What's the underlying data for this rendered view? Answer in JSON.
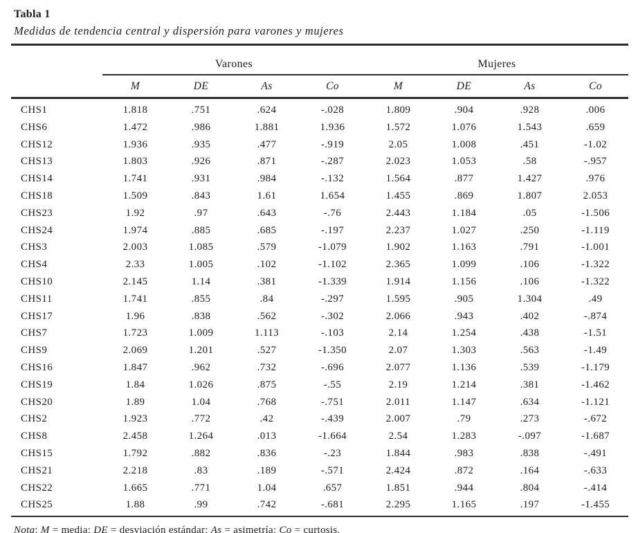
{
  "title": "Tabla 1",
  "subtitle": "Medidas de tendencia central y dispersión para varones y mujeres",
  "colors": {
    "text": "#1c1c1c",
    "rule": "#2a2a2a",
    "background": "#ffffff"
  },
  "table": {
    "groups": [
      {
        "label": "Varones"
      },
      {
        "label": "Mujeres"
      }
    ],
    "subheaders": [
      "M",
      "DE",
      "As",
      "Co",
      "M",
      "DE",
      "As",
      "Co"
    ],
    "rows": [
      {
        "label": "CHS1",
        "values": [
          "1.818",
          ".751",
          ".624",
          "-.028",
          "1.809",
          ".904",
          ".928",
          ".006"
        ]
      },
      {
        "label": "CHS6",
        "values": [
          "1.472",
          ".986",
          "1.881",
          "1.936",
          "1.572",
          "1.076",
          "1.543",
          ".659"
        ]
      },
      {
        "label": "CHS12",
        "values": [
          "1.936",
          ".935",
          ".477",
          "-.919",
          "2.05",
          "1.008",
          ".451",
          "-1.02"
        ]
      },
      {
        "label": "CHS13",
        "values": [
          "1.803",
          ".926",
          ".871",
          "-.287",
          "2.023",
          "1.053",
          ".58",
          "-.957"
        ]
      },
      {
        "label": "CHS14",
        "values": [
          "1.741",
          ".931",
          ".984",
          "-.132",
          "1.564",
          ".877",
          "1.427",
          ".976"
        ]
      },
      {
        "label": "CHS18",
        "values": [
          "1.509",
          ".843",
          "1.61",
          "1.654",
          "1.455",
          ".869",
          "1.807",
          "2.053"
        ]
      },
      {
        "label": "CHS23",
        "values": [
          "1.92",
          ".97",
          ".643",
          "-.76",
          "2.443",
          "1.184",
          ".05",
          "-1.506"
        ]
      },
      {
        "label": "CHS24",
        "values": [
          "1.974",
          ".885",
          ".685",
          "-.197",
          "2.237",
          "1.027",
          ".250",
          "-1.119"
        ]
      },
      {
        "label": "CHS3",
        "values": [
          "2.003",
          "1.085",
          ".579",
          "-1.079",
          "1.902",
          "1.163",
          ".791",
          "-1.001"
        ]
      },
      {
        "label": "CHS4",
        "values": [
          "2.33",
          "1.005",
          ".102",
          "-1.102",
          "2.365",
          "1.099",
          ".106",
          "-1.322"
        ]
      },
      {
        "label": "CHS10",
        "values": [
          "2.145",
          "1.14",
          ".381",
          "-1.339",
          "1.914",
          "1.156",
          ".106",
          "-1.322"
        ]
      },
      {
        "label": "CHS11",
        "values": [
          "1.741",
          ".855",
          ".84",
          "-.297",
          "1.595",
          ".905",
          "1.304",
          ".49"
        ]
      },
      {
        "label": "CHS17",
        "values": [
          "1.96",
          ".838",
          ".562",
          "-.302",
          "2.066",
          ".943",
          ".402",
          "-.874"
        ]
      },
      {
        "label": "CHS7",
        "values": [
          "1.723",
          "1.009",
          "1.113",
          "-.103",
          "2.14",
          "1.254",
          ".438",
          "-1.51"
        ]
      },
      {
        "label": "CHS9",
        "values": [
          "2.069",
          "1.201",
          ".527",
          "-1.350",
          "2.07",
          "1.303",
          ".563",
          "-1.49"
        ]
      },
      {
        "label": "CHS16",
        "values": [
          "1.847",
          ".962",
          ".732",
          "-.696",
          "2.077",
          "1.136",
          ".539",
          "-1.179"
        ]
      },
      {
        "label": "CHS19",
        "values": [
          "1.84",
          "1.026",
          ".875",
          "-.55",
          "2.19",
          "1.214",
          ".381",
          "-1.462"
        ]
      },
      {
        "label": "CHS20",
        "values": [
          "1.89",
          "1.04",
          ".768",
          "-.751",
          "2.011",
          "1.147",
          ".634",
          "-1.121"
        ]
      },
      {
        "label": "CHS2",
        "values": [
          "1.923",
          ".772",
          ".42",
          "-.439",
          "2.007",
          ".79",
          ".273",
          "-.672"
        ]
      },
      {
        "label": "CHS8",
        "values": [
          "2.458",
          "1.264",
          ".013",
          "-1.664",
          "2.54",
          "1.283",
          "-.097",
          "-1.687"
        ]
      },
      {
        "label": "CHS15",
        "values": [
          "1.792",
          ".882",
          ".836",
          "-.23",
          "1.844",
          ".983",
          ".838",
          "-.491"
        ]
      },
      {
        "label": "CHS21",
        "values": [
          "2.218",
          ".83",
          ".189",
          "-.571",
          "2.424",
          ".872",
          ".164",
          "-.633"
        ]
      },
      {
        "label": "CHS22",
        "values": [
          "1.665",
          ".771",
          "1.04",
          ".657",
          "1.851",
          ".944",
          ".804",
          "-.414"
        ]
      },
      {
        "label": "CHS25",
        "values": [
          "1.88",
          ".99",
          ".742",
          "-.681",
          "2.295",
          "1.165",
          ".197",
          "-1.455"
        ]
      }
    ]
  },
  "note": {
    "parts": [
      {
        "text": "Nota",
        "italic": true
      },
      {
        "text": ": ",
        "italic": false
      },
      {
        "text": "M",
        "italic": true
      },
      {
        "text": " = media; ",
        "italic": false
      },
      {
        "text": "DE",
        "italic": true
      },
      {
        "text": " = desviación estándar; ",
        "italic": false
      },
      {
        "text": "As",
        "italic": true
      },
      {
        "text": " = asimetría; ",
        "italic": false
      },
      {
        "text": "Co",
        "italic": true
      },
      {
        "text": " = curtosis.",
        "italic": false
      }
    ]
  }
}
